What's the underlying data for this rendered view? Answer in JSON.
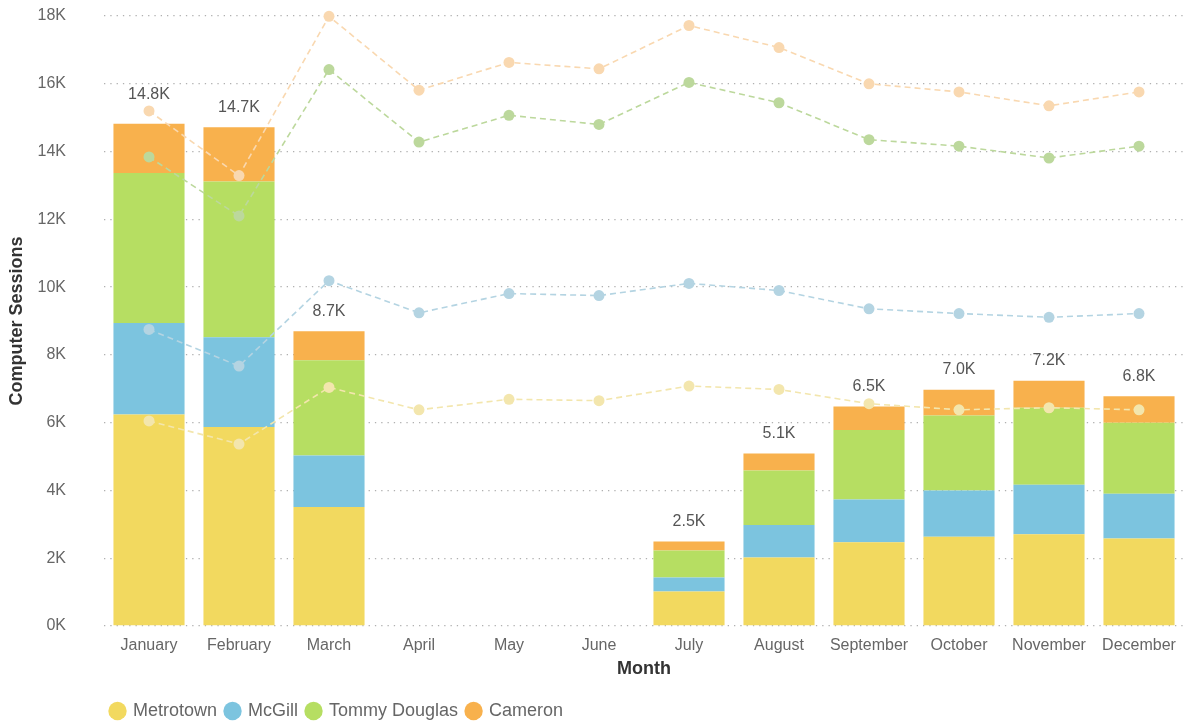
{
  "chart_data": {
    "type": "bar",
    "xlabel": "Month",
    "ylabel": "Computer Sessions",
    "categories": [
      "January",
      "February",
      "March",
      "April",
      "May",
      "June",
      "July",
      "August",
      "September",
      "October",
      "November",
      "December"
    ],
    "stacked": true,
    "grid": "y",
    "legend": "bottom left",
    "marker": "circle",
    "line_style": "dashed",
    "ylim": [
      0,
      18000
    ],
    "yticks": [
      {
        "value": 0,
        "label": "0K"
      },
      {
        "value": 2000,
        "label": "2K"
      },
      {
        "value": 4000,
        "label": "4K"
      },
      {
        "value": 6000,
        "label": "6K"
      },
      {
        "value": 8000,
        "label": "8K"
      },
      {
        "value": 10000,
        "label": "10K"
      },
      {
        "value": 12000,
        "label": "12K"
      },
      {
        "value": 14000,
        "label": "14K"
      },
      {
        "value": 16000,
        "label": "16K"
      },
      {
        "value": 18000,
        "label": "18K"
      }
    ],
    "series": [
      {
        "name": "Metrotown",
        "color": "#f2d95f",
        "values": [
          6240,
          5870,
          3510,
          null,
          null,
          null,
          1020,
          2020,
          2470,
          2630,
          2710,
          2580
        ]
      },
      {
        "name": "McGill",
        "color": "#7cc4df",
        "values": [
          2700,
          2650,
          1520,
          null,
          null,
          null,
          410,
          960,
          1260,
          1370,
          1460,
          1320
        ]
      },
      {
        "name": "Tommy Douglas",
        "color": "#b6de62",
        "values": [
          4430,
          4600,
          2810,
          null,
          null,
          null,
          800,
          1610,
          2050,
          2210,
          2270,
          2100
        ]
      },
      {
        "name": "Cameron",
        "color": "#f8b14d",
        "values": [
          1450,
          1600,
          860,
          null,
          null,
          null,
          260,
          500,
          700,
          760,
          800,
          780
        ]
      },
      {
        "type": "line",
        "color": "#f3e6ad",
        "values": [
          6050,
          5370,
          7040,
          6380,
          6690,
          6650,
          7080,
          6980,
          6560,
          6380,
          6440,
          6380
        ]
      },
      {
        "type": "line",
        "color": "#b4d4e2",
        "values": [
          8750,
          7670,
          10190,
          9240,
          9810,
          9750,
          10110,
          9900,
          9360,
          9220,
          9110,
          9220
        ]
      },
      {
        "type": "line",
        "color": "#bcd89c",
        "values": [
          13840,
          12100,
          16420,
          14280,
          15070,
          14800,
          16040,
          15440,
          14350,
          14160,
          13810,
          14160
        ]
      },
      {
        "type": "line",
        "color": "#f9d8b0",
        "values": [
          15200,
          13290,
          17990,
          15810,
          16630,
          16440,
          17720,
          17070,
          16000,
          15760,
          15350,
          15760
        ]
      }
    ],
    "totals": [
      "14.8K",
      "14.7K",
      "8.7K",
      null,
      null,
      null,
      "2.5K",
      "5.1K",
      "6.5K",
      "7.0K",
      "7.2K",
      "6.8K"
    ]
  }
}
